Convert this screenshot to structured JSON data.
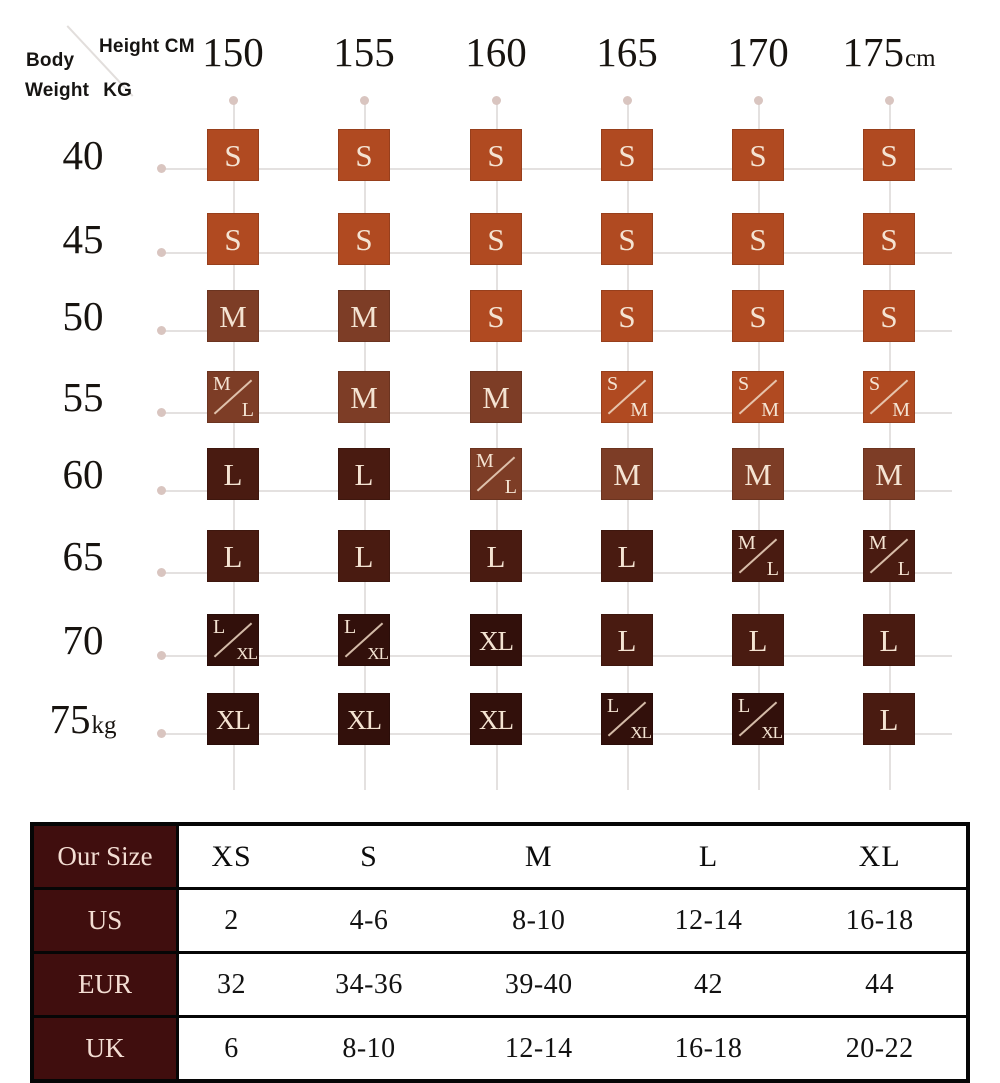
{
  "colors": {
    "s": "#b04a21",
    "m": "#7d3d26",
    "l": "#491b11",
    "xl": "#32100b",
    "cell_text": "#f4e3d2",
    "grid_line": "#e4e1e0",
    "dot": "#d9c5c0",
    "table_header_bg": "#400e0e",
    "table_header_text": "#f3ddd3",
    "table_border": "#060606"
  },
  "matrix": {
    "corner": {
      "height_label": "Height CM",
      "body_label": "Body",
      "weight_label": "Weight",
      "weight_unit_label": "KG"
    },
    "columns": [
      {
        "value": "150",
        "unit": ""
      },
      {
        "value": "155",
        "unit": ""
      },
      {
        "value": "160",
        "unit": ""
      },
      {
        "value": "165",
        "unit": ""
      },
      {
        "value": "170",
        "unit": ""
      },
      {
        "value": "175",
        "unit": "cm"
      }
    ],
    "rows": [
      {
        "weight": "40",
        "unit": "",
        "cells": [
          {
            "label": "S",
            "variant": "s"
          },
          {
            "label": "S",
            "variant": "s"
          },
          {
            "label": "S",
            "variant": "s"
          },
          {
            "label": "S",
            "variant": "s"
          },
          {
            "label": "S",
            "variant": "s"
          },
          {
            "label": "S",
            "variant": "s"
          }
        ]
      },
      {
        "weight": "45",
        "unit": "",
        "cells": [
          {
            "label": "S",
            "variant": "s"
          },
          {
            "label": "S",
            "variant": "s"
          },
          {
            "label": "S",
            "variant": "s"
          },
          {
            "label": "S",
            "variant": "s"
          },
          {
            "label": "S",
            "variant": "s"
          },
          {
            "label": "S",
            "variant": "s"
          }
        ]
      },
      {
        "weight": "50",
        "unit": "",
        "cells": [
          {
            "label": "M",
            "variant": "m"
          },
          {
            "label": "M",
            "variant": "m"
          },
          {
            "label": "S",
            "variant": "s"
          },
          {
            "label": "S",
            "variant": "s"
          },
          {
            "label": "S",
            "variant": "s"
          },
          {
            "label": "S",
            "variant": "s"
          }
        ]
      },
      {
        "weight": "55",
        "unit": "",
        "cells": [
          {
            "label": "M/L",
            "parts": [
              "M",
              "L"
            ],
            "variant": "m"
          },
          {
            "label": "M",
            "variant": "m"
          },
          {
            "label": "M",
            "variant": "m"
          },
          {
            "label": "S/M",
            "parts": [
              "S",
              "M"
            ],
            "variant": "s"
          },
          {
            "label": "S/M",
            "parts": [
              "S",
              "M"
            ],
            "variant": "s"
          },
          {
            "label": "S/M",
            "parts": [
              "S",
              "M"
            ],
            "variant": "s"
          }
        ]
      },
      {
        "weight": "60",
        "unit": "",
        "cells": [
          {
            "label": "L",
            "variant": "l"
          },
          {
            "label": "L",
            "variant": "l"
          },
          {
            "label": "M/L",
            "parts": [
              "M",
              "L"
            ],
            "variant": "m"
          },
          {
            "label": "M",
            "variant": "m"
          },
          {
            "label": "M",
            "variant": "m"
          },
          {
            "label": "M",
            "variant": "m"
          }
        ]
      },
      {
        "weight": "65",
        "unit": "",
        "cells": [
          {
            "label": "L",
            "variant": "l"
          },
          {
            "label": "L",
            "variant": "l"
          },
          {
            "label": "L",
            "variant": "l"
          },
          {
            "label": "L",
            "variant": "l"
          },
          {
            "label": "M/L",
            "parts": [
              "M",
              "L"
            ],
            "variant": "l"
          },
          {
            "label": "M/L",
            "parts": [
              "M",
              "L"
            ],
            "variant": "l"
          }
        ]
      },
      {
        "weight": "70",
        "unit": "",
        "cells": [
          {
            "label": "L/XL",
            "parts": [
              "L",
              "XL"
            ],
            "variant": "xl"
          },
          {
            "label": "L/XL",
            "parts": [
              "L",
              "XL"
            ],
            "variant": "xl"
          },
          {
            "label": "XL",
            "variant": "xl"
          },
          {
            "label": "L",
            "variant": "l"
          },
          {
            "label": "L",
            "variant": "l"
          },
          {
            "label": "L",
            "variant": "l"
          }
        ]
      },
      {
        "weight": "75",
        "unit": "kg",
        "cells": [
          {
            "label": "XL",
            "variant": "xl"
          },
          {
            "label": "XL",
            "variant": "xl"
          },
          {
            "label": "XL",
            "variant": "xl"
          },
          {
            "label": "L/XL",
            "parts": [
              "L",
              "XL"
            ],
            "variant": "xl"
          },
          {
            "label": "L/XL",
            "parts": [
              "L",
              "XL"
            ],
            "variant": "xl"
          },
          {
            "label": "L",
            "variant": "l"
          }
        ]
      }
    ]
  },
  "conversion_table": {
    "corner_label": "Our Size",
    "size_headers": [
      "XS",
      "S",
      "M",
      "L",
      "XL"
    ],
    "rows": [
      {
        "region": "US",
        "values": [
          "2",
          "4-6",
          "8-10",
          "12-14",
          "16-18"
        ]
      },
      {
        "region": "EUR",
        "values": [
          "32",
          "34-36",
          "39-40",
          "42",
          "44"
        ]
      },
      {
        "region": "UK",
        "values": [
          "6",
          "8-10",
          "12-14",
          "16-18",
          "20-22"
        ]
      }
    ]
  },
  "chart_data": [
    {
      "type": "heatmap",
      "title": "Recommended size by body height and weight",
      "xlabel": "Height CM",
      "ylabel": "Body Weight KG",
      "x": [
        150,
        155,
        160,
        165,
        170,
        175
      ],
      "y": [
        40,
        45,
        50,
        55,
        60,
        65,
        70,
        75
      ],
      "values": [
        [
          "S",
          "S",
          "S",
          "S",
          "S",
          "S"
        ],
        [
          "S",
          "S",
          "S",
          "S",
          "S",
          "S"
        ],
        [
          "M",
          "M",
          "S",
          "S",
          "S",
          "S"
        ],
        [
          "M/L",
          "M",
          "M",
          "S/M",
          "S/M",
          "S/M"
        ],
        [
          "L",
          "L",
          "M/L",
          "M",
          "M",
          "M"
        ],
        [
          "L",
          "L",
          "L",
          "L",
          "M/L",
          "M/L"
        ],
        [
          "L/XL",
          "L/XL",
          "XL",
          "L",
          "L",
          "L"
        ],
        [
          "XL",
          "XL",
          "XL",
          "L/XL",
          "L/XL",
          "L"
        ]
      ],
      "legend_position": "none",
      "grid": true
    },
    {
      "type": "table",
      "columns": [
        "Our Size",
        "XS",
        "S",
        "M",
        "L",
        "XL"
      ],
      "rows": [
        [
          "US",
          "2",
          "4-6",
          "8-10",
          "12-14",
          "16-18"
        ],
        [
          "EUR",
          "32",
          "34-36",
          "39-40",
          "42",
          "44"
        ],
        [
          "UK",
          "6",
          "8-10",
          "12-14",
          "16-18",
          "20-22"
        ]
      ]
    }
  ]
}
